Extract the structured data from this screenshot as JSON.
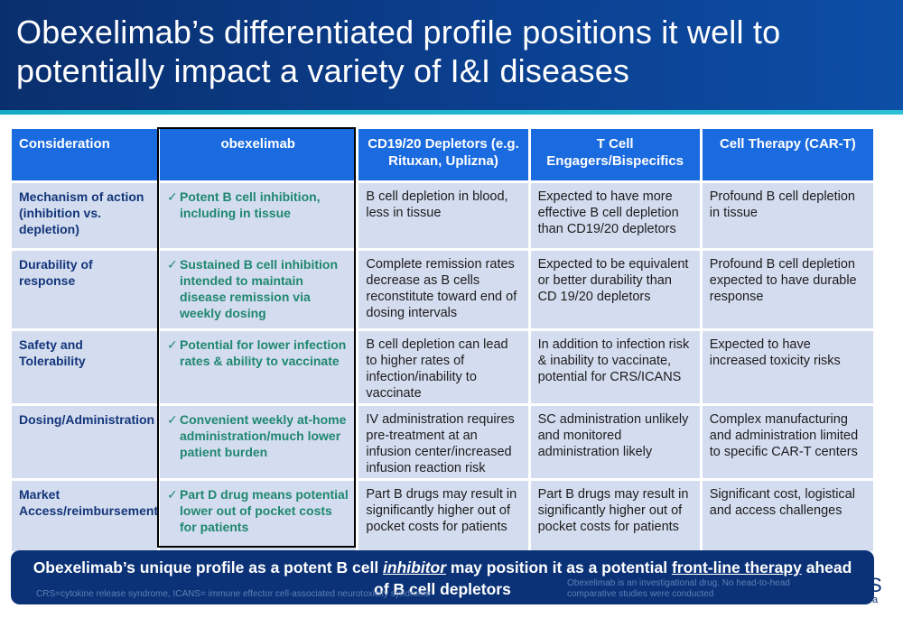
{
  "title": "Obexelimab’s differentiated profile positions it well to potentially impact a variety of I&I diseases",
  "table": {
    "headers": [
      "Consideration",
      "obexelimab",
      "CD19/20 Depletors (e.g. Rituxan, Uplizna)",
      "T Cell Engagers/Bispecifics",
      "Cell Therapy (CAR-T)"
    ],
    "rows": [
      {
        "consideration": "Mechanism of action (inhibition vs. depletion)",
        "obexelimab": "Potent B cell inhibition, including in tissue",
        "cd1920": "B cell depletion in blood, less in tissue",
        "tcell": "Expected to have more effective B cell depletion than CD19/20 depletors",
        "cart": "Profound B cell depletion in tissue"
      },
      {
        "consideration": "Durability of response",
        "obexelimab": "Sustained B cell inhibition intended to maintain disease remission via weekly dosing",
        "cd1920": "Complete remission rates decrease as B cells reconstitute toward end of dosing intervals",
        "tcell": "Expected to be equivalent or better durability than CD 19/20 depletors",
        "cart": "Profound B cell depletion expected to have durable response"
      },
      {
        "consideration": "Safety and Tolerability",
        "obexelimab": "Potential for lower infection rates & ability to vaccinate",
        "cd1920": "B cell depletion can lead to higher rates of infection/inability to vaccinate",
        "tcell": "In addition to infection risk & inability to vaccinate, potential for CRS/ICANS",
        "cart": "Expected to have increased toxicity risks"
      },
      {
        "consideration": "Dosing/Administration",
        "obexelimab": "Convenient weekly at-home administration/much lower patient burden",
        "cd1920": "IV administration requires pre-treatment at an infusion center/increased infusion reaction risk",
        "tcell": "SC administration unlikely and monitored administration likely",
        "cart": "Complex manufacturing and administration limited to specific CAR-T centers"
      },
      {
        "consideration": "Market Access/reimbursement",
        "obexelimab": "Part D drug means potential lower out of pocket costs for patients",
        "cd1920": "Part B drugs may result in significantly higher out of pocket costs for patients",
        "tcell": "Part B drugs may result in significantly higher out of pocket costs for patients",
        "cart": "Significant cost, logistical and access challenges"
      }
    ],
    "check_mark": "✓"
  },
  "banner": {
    "part1": "Obexelimab’s unique profile as a potent B cell ",
    "emph1": "inhibitor",
    "part2": " may position it as a potential ",
    "emph2": "front-line therapy",
    "part3": " ahead of B cell depletors"
  },
  "footnote_left": "CRS=cytokine release syndrome, ICANS= immune effector cell-associated neurotoxicity syndrome",
  "footnote_right": "Obexelimab is an investigational drug. No head-to-head comparative studies were conducted",
  "corner_letter": "S",
  "corner_small": "a",
  "colors": {
    "header_bg": "#0b3f8f",
    "accent_stripe": "#14a9c4",
    "table_header": "#1a6ae0",
    "table_cell": "#d4ddef",
    "obexelimab_text": "#1f8770",
    "banner_bg": "#0b3277"
  }
}
